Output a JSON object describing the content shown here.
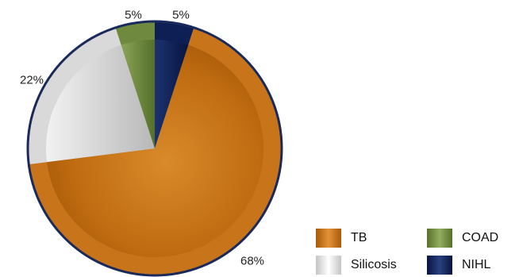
{
  "chart_data": {
    "type": "pie",
    "slices": [
      {
        "name": "TB",
        "value": 68,
        "label": "68%",
        "color": "#c8741a"
      },
      {
        "name": "Silicosis",
        "value": 22,
        "label": "22%",
        "color": "#d9d9d9"
      },
      {
        "name": "COAD",
        "value": 5,
        "label": "5%",
        "color": "#6f8a3e"
      },
      {
        "name": "NIHL",
        "value": 5,
        "label": "5%",
        "color": "#0d1f55"
      }
    ],
    "start": "12 o'clock",
    "direction": "clockwise",
    "outline_color": "#1a2a5a",
    "legend": {
      "placement": "bottom-right",
      "items": [
        {
          "label": "TB",
          "color": "#c8741a"
        },
        {
          "label": "COAD",
          "color": "#6f8a3e"
        },
        {
          "label": "Silicosis",
          "color": "#d9d9d9"
        },
        {
          "label": "NIHL",
          "color": "#0d1f55"
        }
      ]
    }
  }
}
